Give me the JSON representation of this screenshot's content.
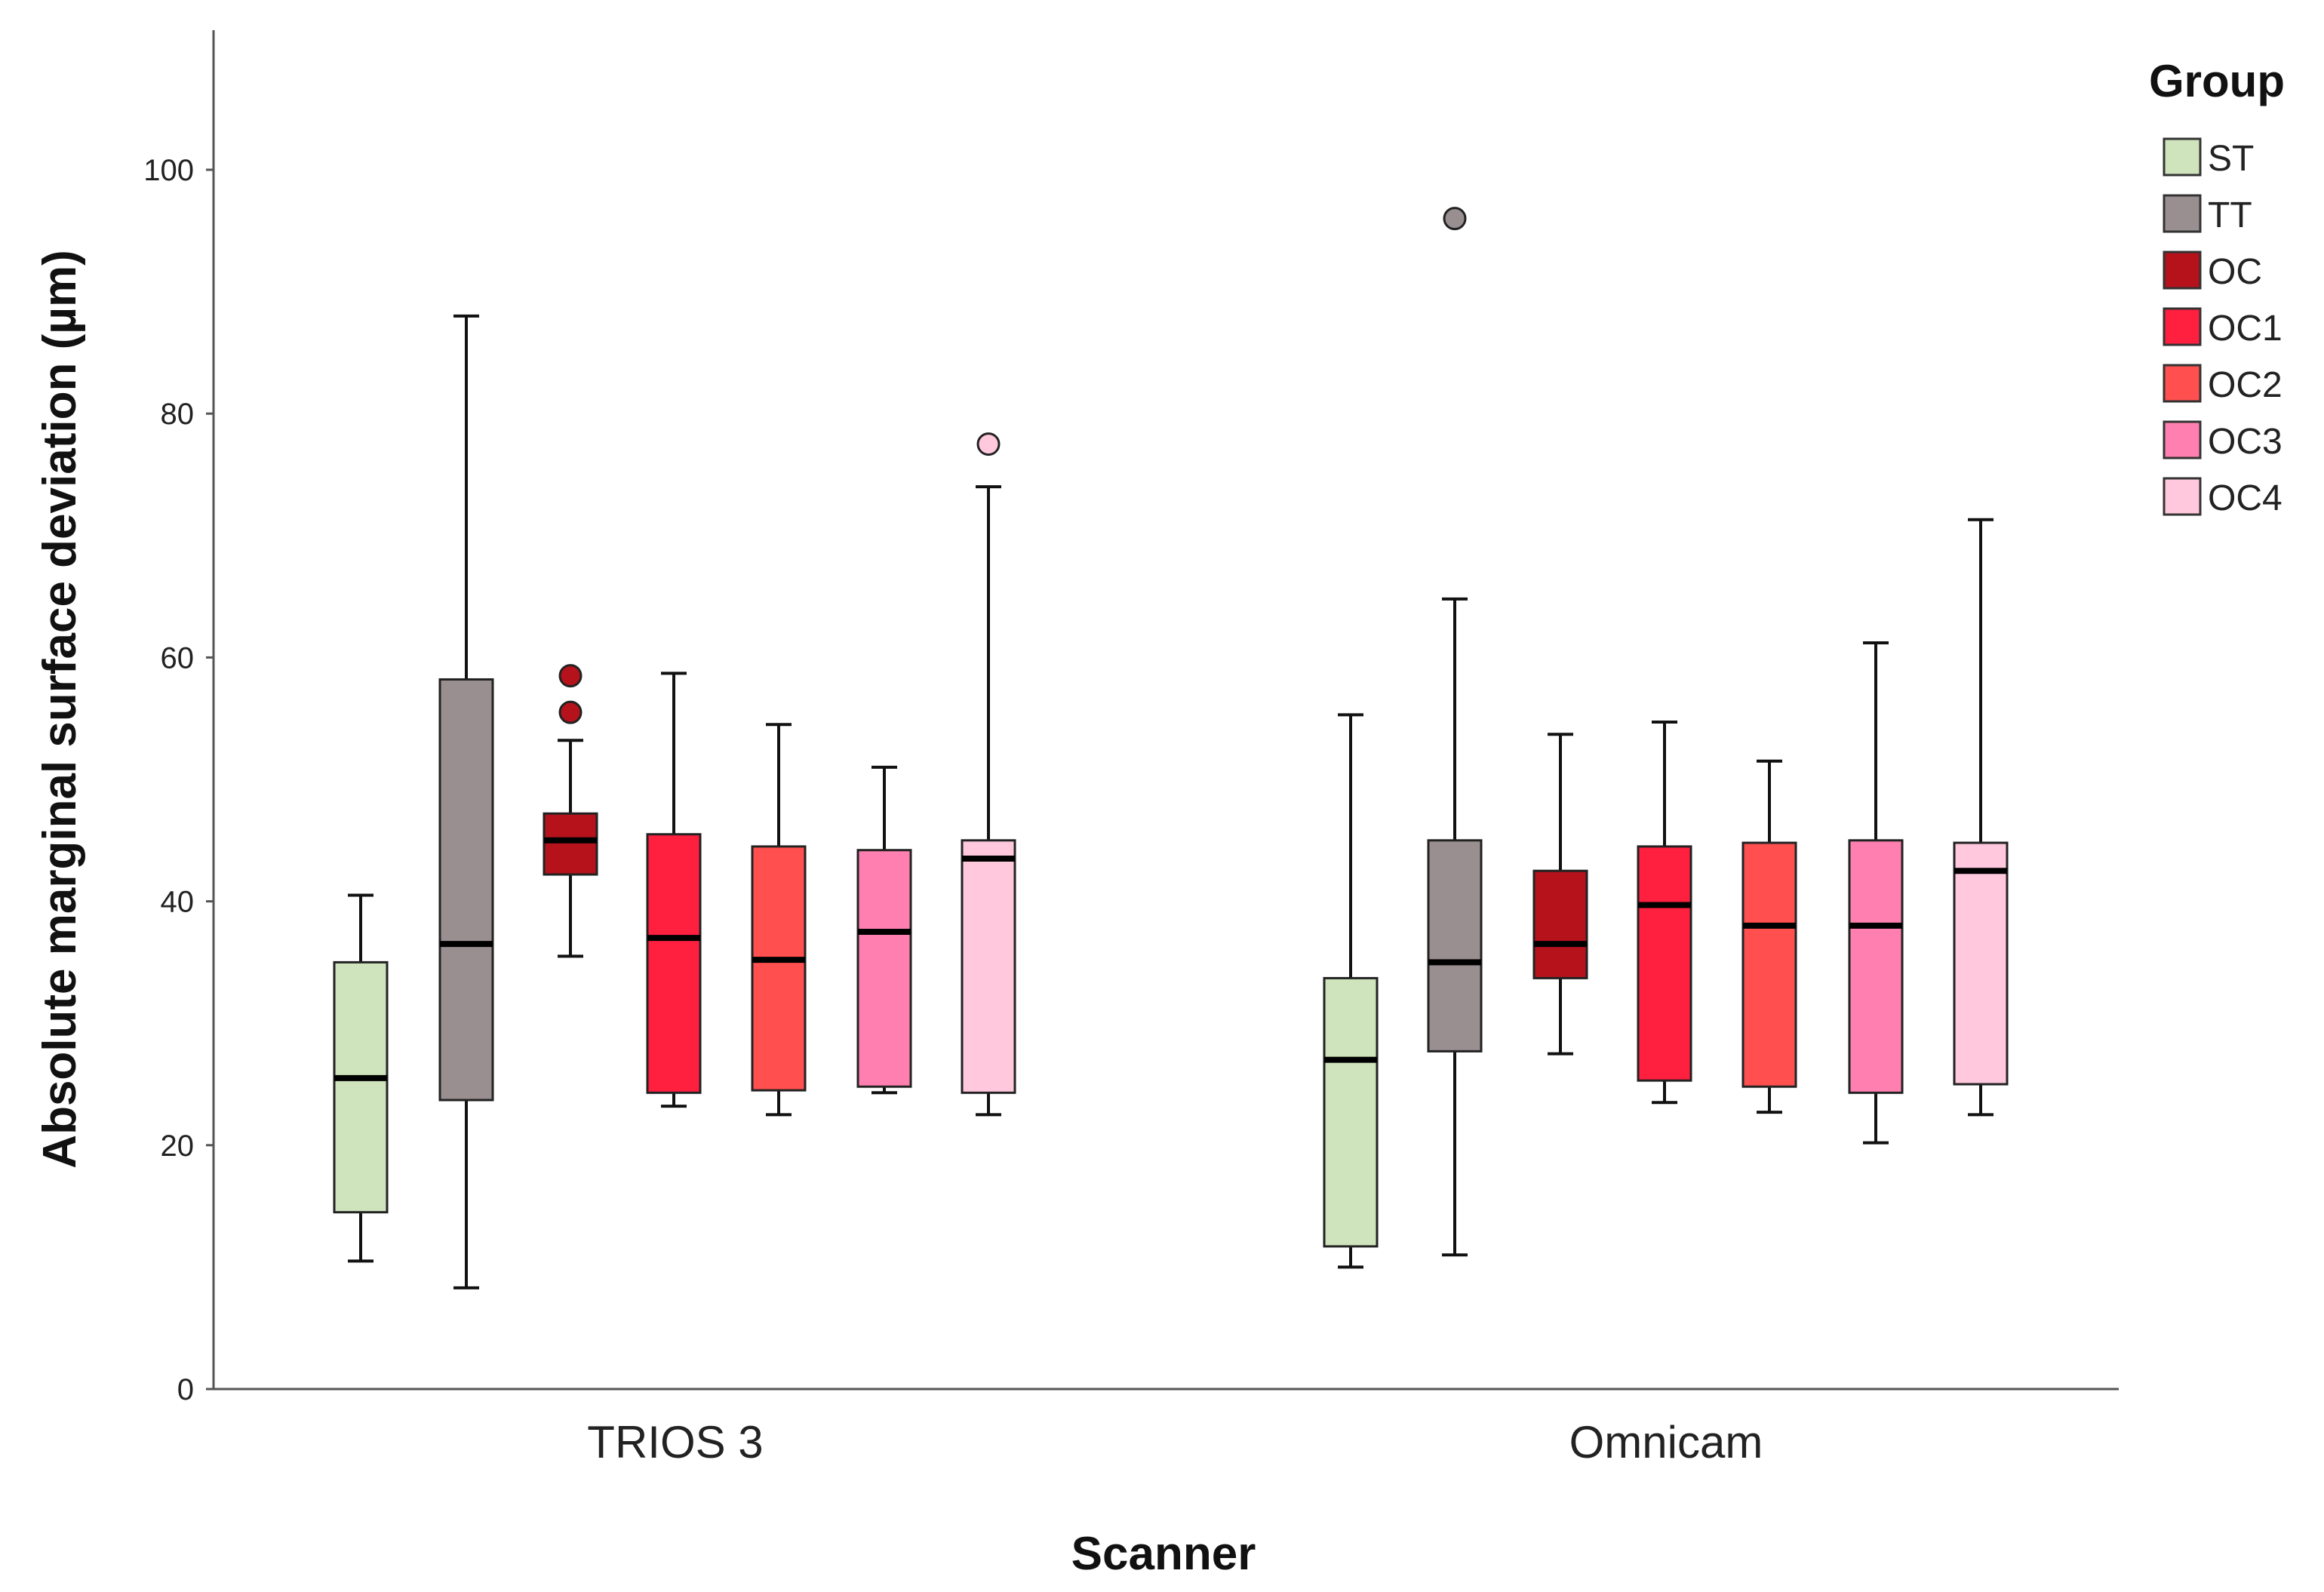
{
  "chart_data": {
    "type": "boxplot",
    "title": "",
    "xlabel": "Scanner",
    "ylabel": "Absolute marginal surface deviation (µm)",
    "ylim": [
      0,
      112
    ],
    "yticks": [
      0,
      20,
      40,
      60,
      80,
      100
    ],
    "categories": [
      "TRIOS 3",
      "Omnicam"
    ],
    "legend": {
      "title": "Group",
      "position": "top-right"
    },
    "series": [
      {
        "name": "ST",
        "color": "#cfe4bd",
        "boxes": [
          {
            "min": 10.5,
            "q1": 14.5,
            "median": 25.5,
            "q3": 35.0,
            "max": 40.5,
            "outliers": []
          },
          {
            "min": 10.0,
            "q1": 11.7,
            "median": 27.0,
            "q3": 33.7,
            "max": 55.3,
            "outliers": []
          }
        ]
      },
      {
        "name": "TT",
        "color": "#9a8f90",
        "boxes": [
          {
            "min": 8.3,
            "q1": 23.7,
            "median": 36.5,
            "q3": 58.2,
            "max": 88.0,
            "outliers": []
          },
          {
            "min": 11.0,
            "q1": 27.7,
            "median": 35.0,
            "q3": 45.0,
            "max": 64.8,
            "outliers": [
              96.0
            ]
          }
        ]
      },
      {
        "name": "OC",
        "color": "#b5121b",
        "boxes": [
          {
            "min": 35.5,
            "q1": 42.2,
            "median": 45.0,
            "q3": 47.2,
            "max": 53.2,
            "outliers": [
              55.5,
              58.5
            ]
          },
          {
            "min": 27.5,
            "q1": 33.7,
            "median": 36.5,
            "q3": 42.5,
            "max": 53.7,
            "outliers": []
          }
        ]
      },
      {
        "name": "OC1",
        "color": "#ff1f3f",
        "boxes": [
          {
            "min": 23.2,
            "q1": 24.3,
            "median": 37.0,
            "q3": 45.5,
            "max": 58.7,
            "outliers": []
          },
          {
            "min": 23.5,
            "q1": 25.3,
            "median": 39.7,
            "q3": 44.5,
            "max": 54.7,
            "outliers": []
          }
        ]
      },
      {
        "name": "OC2",
        "color": "#ff4f4f",
        "boxes": [
          {
            "min": 22.5,
            "q1": 24.5,
            "median": 35.2,
            "q3": 44.5,
            "max": 54.5,
            "outliers": []
          },
          {
            "min": 22.7,
            "q1": 24.8,
            "median": 38.0,
            "q3": 44.8,
            "max": 51.5,
            "outliers": []
          }
        ]
      },
      {
        "name": "OC3",
        "color": "#ff80b0",
        "boxes": [
          {
            "min": 24.3,
            "q1": 24.8,
            "median": 37.5,
            "q3": 44.2,
            "max": 51.0,
            "outliers": []
          },
          {
            "min": 20.2,
            "q1": 24.3,
            "median": 38.0,
            "q3": 45.0,
            "max": 61.2,
            "outliers": []
          }
        ]
      },
      {
        "name": "OC4",
        "color": "#ffc8dc",
        "boxes": [
          {
            "min": 22.5,
            "q1": 24.3,
            "median": 43.5,
            "q3": 45.0,
            "max": 74.0,
            "outliers": [
              77.5
            ]
          },
          {
            "min": 22.5,
            "q1": 25.0,
            "median": 42.5,
            "q3": 44.8,
            "max": 71.3,
            "outliers": []
          }
        ]
      }
    ]
  }
}
